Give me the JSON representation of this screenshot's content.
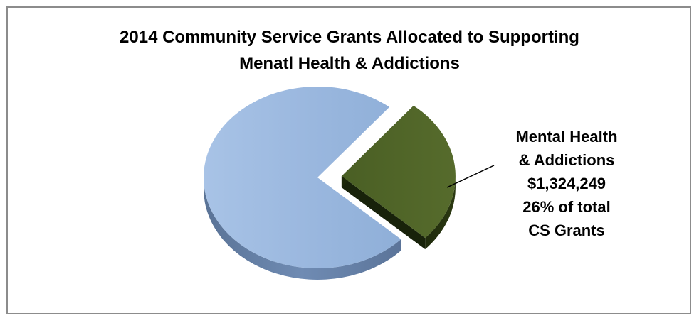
{
  "chart_data": {
    "type": "pie",
    "title": "2014 Community Service Grants Allocated to Supporting Menatl Health & Addictions",
    "title_lines": [
      "2014 Community Service Grants Allocated to Supporting",
      "Menatl Health & Addictions"
    ],
    "slices": [
      {
        "value": 26,
        "color": "#4f6228",
        "exploded": true
      },
      {
        "value": 74,
        "color": "#95b3d7"
      }
    ],
    "data_label": {
      "lines": [
        "Mental Health",
        "& Addictions",
        "$1,324,249",
        "26% of total",
        "CS Grants"
      ]
    },
    "style": "3d"
  }
}
